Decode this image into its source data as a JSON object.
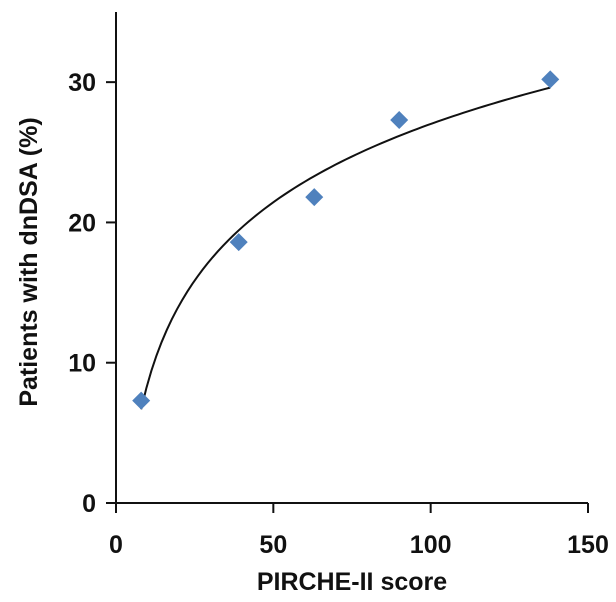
{
  "chart_data": {
    "type": "scatter",
    "title": "",
    "xlabel": "PIRCHE-II score",
    "ylabel": "Patients with dnDSA (%)",
    "xlim": [
      0,
      150
    ],
    "ylim": [
      0,
      35
    ],
    "x_ticks": [
      0,
      50,
      100,
      150
    ],
    "y_ticks": [
      0,
      10,
      20,
      30
    ],
    "x_tick_labels": [
      "0",
      "50",
      "100",
      "150"
    ],
    "y_tick_labels": [
      "0",
      "10",
      "20",
      "30"
    ],
    "grid": false,
    "legend": "none",
    "series": [
      {
        "marker": "diamond",
        "color": "#4f81bd",
        "points": [
          {
            "x": 8,
            "y": 7.3
          },
          {
            "x": 39,
            "y": 18.6
          },
          {
            "x": 63,
            "y": 21.8
          },
          {
            "x": 90,
            "y": 27.3
          },
          {
            "x": 138,
            "y": 30.2
          }
        ]
      }
    ],
    "trendline": {
      "type": "logarithmic",
      "color": "#111111",
      "x_range": [
        8,
        138
      ]
    }
  }
}
